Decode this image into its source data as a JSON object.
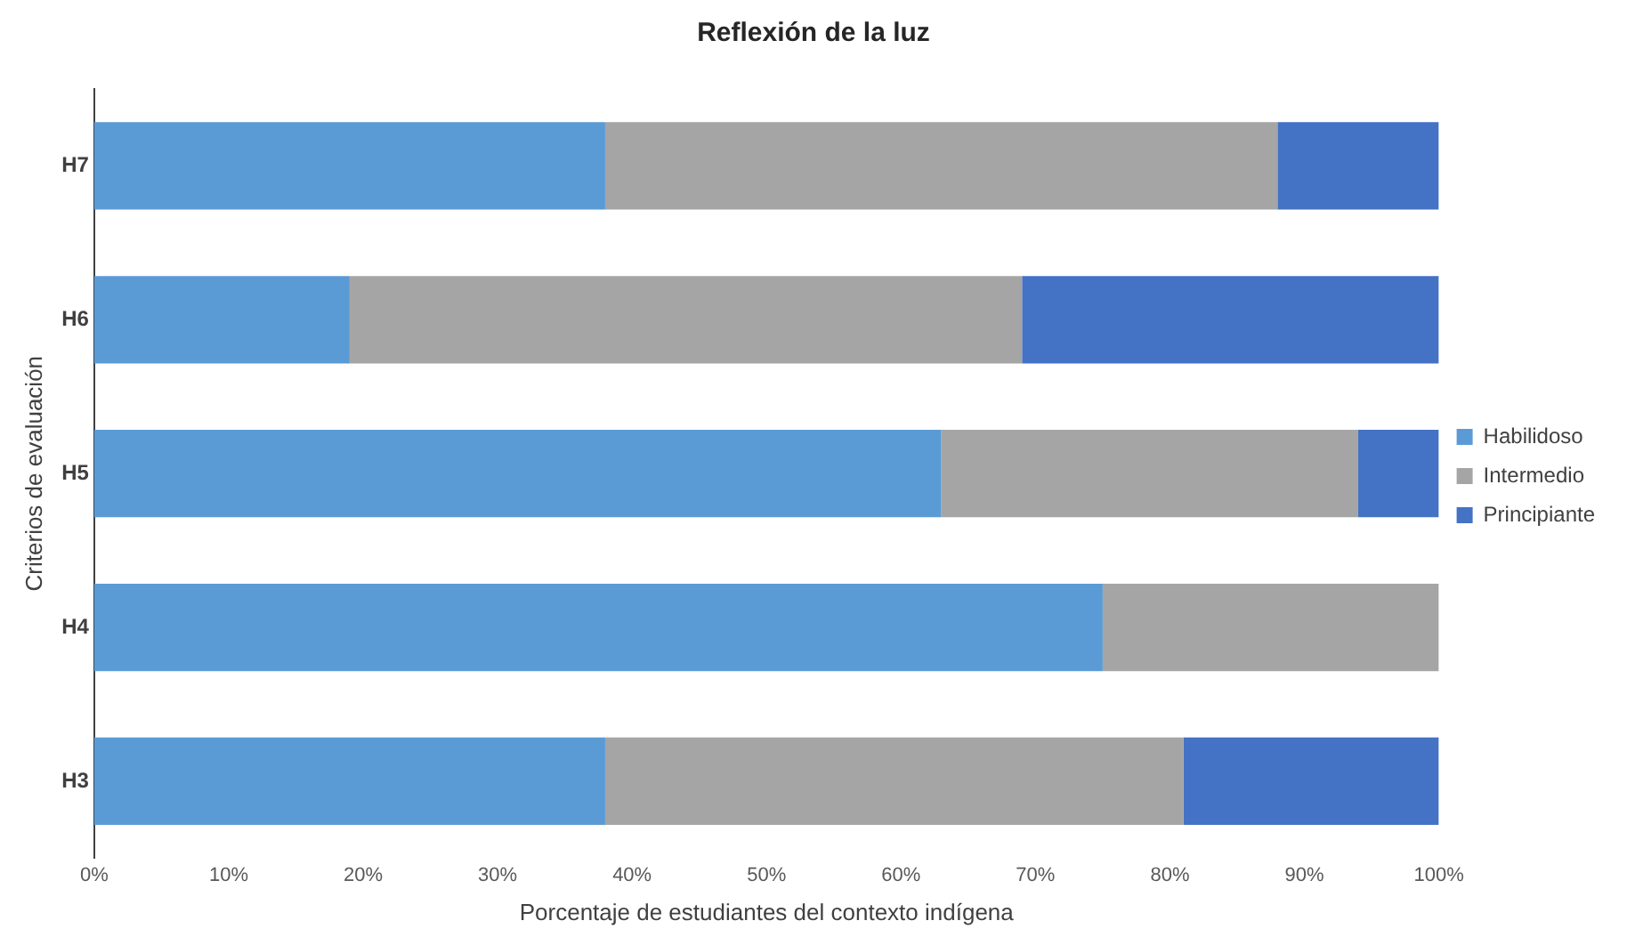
{
  "chart_data": {
    "type": "bar",
    "orientation": "horizontal",
    "stacked": true,
    "title": "Reflexión de la luz",
    "xlabel": "Porcentaje de estudiantes del contexto indígena",
    "ylabel": "Criterios de evaluación",
    "categories": [
      "H7",
      "H6",
      "H5",
      "H4",
      "H3"
    ],
    "series": [
      {
        "name": "Habilidoso",
        "color": "#5b9bd5",
        "values": [
          38,
          19,
          63,
          75,
          38
        ]
      },
      {
        "name": "Intermedio",
        "color": "#a5a5a5",
        "values": [
          50,
          50,
          31,
          25,
          43
        ]
      },
      {
        "name": "Principiante",
        "color": "#4472c4",
        "values": [
          12,
          31,
          6,
          0,
          19
        ]
      }
    ],
    "xlim": [
      0,
      100
    ],
    "xticks": [
      {
        "value": 0,
        "label": "0%"
      },
      {
        "value": 10,
        "label": "10%"
      },
      {
        "value": 20,
        "label": "20%"
      },
      {
        "value": 30,
        "label": "30%"
      },
      {
        "value": 40,
        "label": "40%"
      },
      {
        "value": 50,
        "label": "50%"
      },
      {
        "value": 60,
        "label": "60%"
      },
      {
        "value": 70,
        "label": "70%"
      },
      {
        "value": 80,
        "label": "80%"
      },
      {
        "value": 90,
        "label": "90%"
      },
      {
        "value": 100,
        "label": "100%"
      }
    ],
    "grid": false,
    "legend": "right"
  }
}
